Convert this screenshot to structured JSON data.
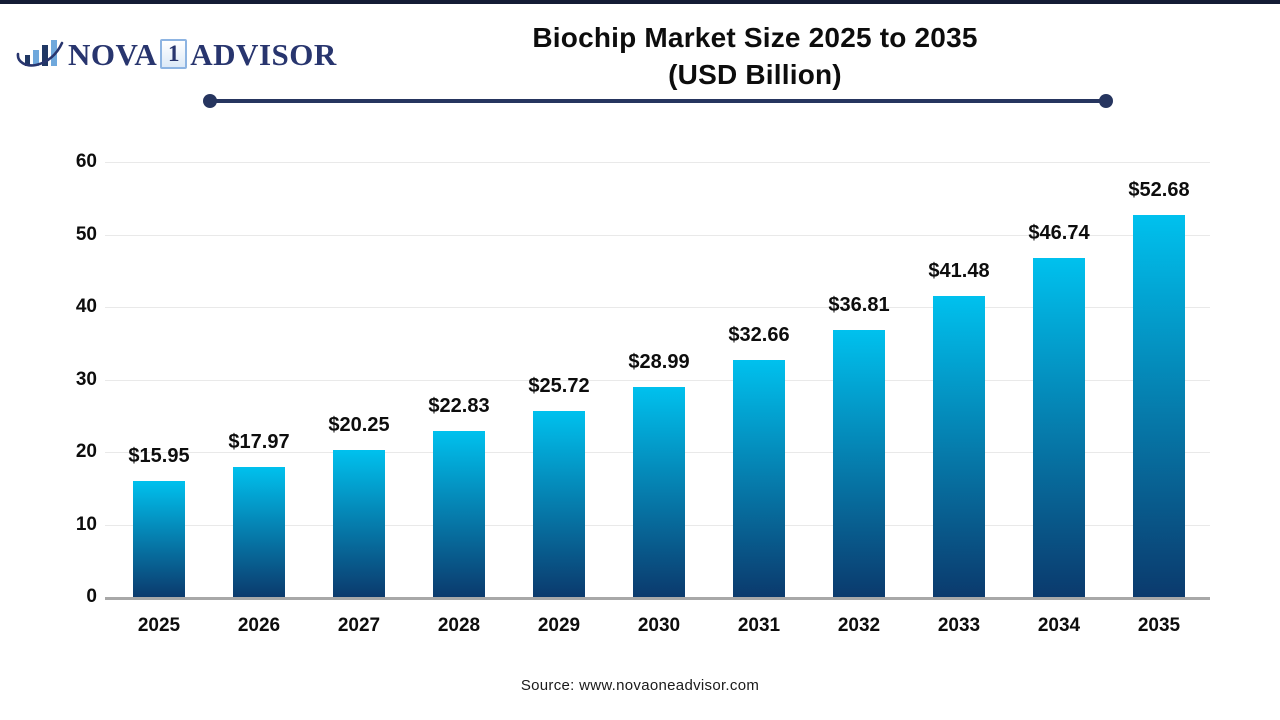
{
  "page": {
    "top_bar_color": "#141c35",
    "background_color": "#ffffff"
  },
  "logo": {
    "name_part1": "NOVA",
    "name_number": "1",
    "name_part2": "ADVISOR",
    "icon": "bar-chart-swoosh-icon",
    "text_color": "#28356e",
    "light_blue": "#6fa8dc",
    "navy": "#203864"
  },
  "header": {
    "title_line1": "Biochip Market Size 2025 to 2035",
    "title_line2": "(USD Billion)",
    "divider_color": "#26355f"
  },
  "chart_data": {
    "type": "bar",
    "title": "Biochip Market Size 2025 to 2035 (USD Billion)",
    "categories": [
      "2025",
      "2026",
      "2027",
      "2028",
      "2029",
      "2030",
      "2031",
      "2032",
      "2033",
      "2034",
      "2035"
    ],
    "values": [
      15.95,
      17.97,
      20.25,
      22.83,
      25.72,
      28.99,
      32.66,
      36.81,
      41.48,
      46.74,
      52.68
    ],
    "value_labels": [
      "$15.95",
      "$17.97",
      "$20.25",
      "$22.83",
      "$25.72",
      "$28.99",
      "$32.66",
      "$36.81",
      "$41.48",
      "$46.74",
      "$52.68"
    ],
    "xlabel": "",
    "ylabel": "",
    "ylim": [
      0,
      60
    ],
    "yticks": [
      0,
      10,
      20,
      30,
      40,
      50,
      60
    ],
    "grid": true,
    "legend": "none",
    "bar_gradient_top": "#00c1ee",
    "bar_gradient_bottom": "#0b3a6d",
    "gridline_color": "#e9e9e9",
    "baseline_color": "#a8a8a8",
    "label_color": "#0d0d0d"
  },
  "footer": {
    "source": "Source: www.novaoneadvisor.com"
  }
}
